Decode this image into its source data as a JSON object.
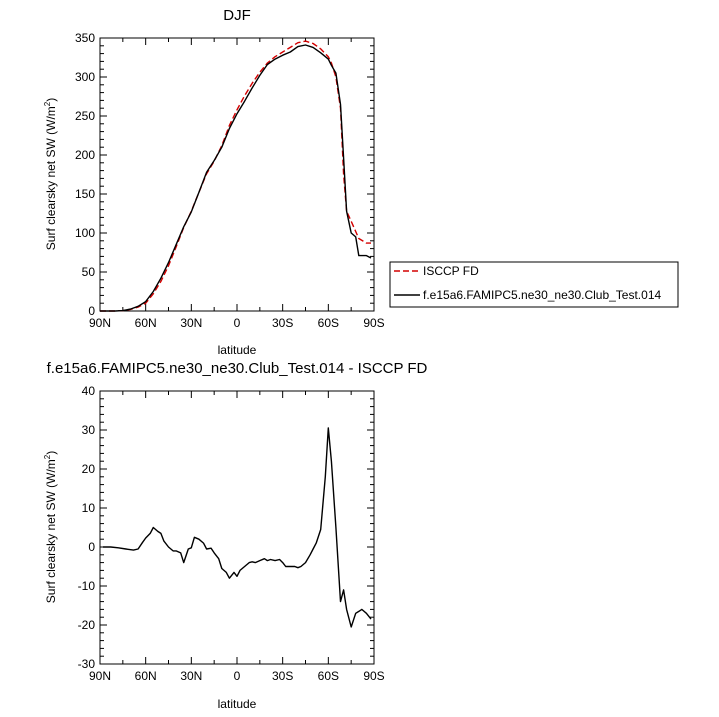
{
  "chart_data": [
    {
      "type": "line",
      "title": "DJF",
      "xlabel": "latitude",
      "ylabel": "Surf clearsky net SW (W/m",
      "ylabel_sup": "2",
      "ylabel_suffix": ")",
      "xlim": [
        90,
        -90
      ],
      "ylim": [
        0,
        350
      ],
      "xticks": [
        90,
        60,
        30,
        0,
        -30,
        -60,
        -90
      ],
      "xtick_labels": [
        "90N",
        "60N",
        "30N",
        "0",
        "30S",
        "60S",
        "90S"
      ],
      "yticks": [
        0,
        50,
        100,
        150,
        200,
        250,
        300,
        350
      ],
      "ytick_labels": [
        "0",
        "50",
        "100",
        "150",
        "200",
        "250",
        "300",
        "350"
      ],
      "legend_position": "right",
      "series": [
        {
          "name": "ISCCP FD",
          "color": "#d40000",
          "dash": true,
          "x": [
            90,
            85,
            80,
            75,
            70,
            65,
            60,
            55,
            50,
            45,
            40,
            35,
            30,
            25,
            20,
            15,
            10,
            5,
            0,
            -5,
            -10,
            -15,
            -20,
            -25,
            -30,
            -35,
            -40,
            -45,
            -50,
            -55,
            -60,
            -62,
            -65,
            -68,
            -70,
            -72,
            -75,
            -80,
            -85,
            -88
          ],
          "y": [
            0,
            0,
            0,
            0.5,
            2,
            5,
            10,
            22,
            38,
            58,
            82,
            107,
            128,
            152,
            176,
            192,
            212,
            238,
            258,
            276,
            292,
            306,
            318,
            326,
            332,
            338,
            344,
            346,
            343,
            336,
            326,
            318,
            300,
            260,
            175,
            128,
            115,
            93,
            87,
            87
          ]
        },
        {
          "name": "f.e15a6.FAMIPC5.ne30_ne30.Club_Test.014",
          "color": "#000000",
          "dash": false,
          "x": [
            90,
            85,
            80,
            75,
            70,
            65,
            60,
            55,
            50,
            45,
            40,
            35,
            30,
            25,
            20,
            15,
            10,
            5,
            0,
            -5,
            -10,
            -15,
            -20,
            -25,
            -30,
            -35,
            -40,
            -45,
            -50,
            -55,
            -60,
            -62,
            -65,
            -68,
            -70,
            -72,
            -75,
            -78,
            -80,
            -85,
            -88
          ],
          "y": [
            0,
            0,
            0,
            0.5,
            2.5,
            6,
            12,
            25,
            42,
            62,
            85,
            108,
            127,
            152,
            178,
            193,
            210,
            234,
            253,
            269,
            286,
            302,
            316,
            323,
            328,
            332,
            339,
            341,
            338,
            331,
            323,
            315,
            305,
            265,
            196,
            128,
            100,
            95,
            71,
            71,
            68
          ]
        }
      ]
    },
    {
      "type": "line",
      "title": "f.e15a6.FAMIPC5.ne30_ne30.Club_Test.014 - ISCCP FD",
      "xlabel": "latitude",
      "ylabel": "Surf clearsky net SW (W/m",
      "ylabel_sup": "2",
      "ylabel_suffix": ")",
      "xlim": [
        90,
        -90
      ],
      "ylim": [
        -30,
        40
      ],
      "xticks": [
        90,
        60,
        30,
        0,
        -30,
        -60,
        -90
      ],
      "xtick_labels": [
        "90N",
        "60N",
        "30N",
        "0",
        "30S",
        "60S",
        "90S"
      ],
      "yticks": [
        -30,
        -20,
        -10,
        0,
        10,
        20,
        30,
        40
      ],
      "ytick_labels": [
        "-30",
        "-20",
        "-10",
        "0",
        "10",
        "20",
        "30",
        "40"
      ],
      "series": [
        {
          "color": "#000000",
          "dash": false,
          "x": [
            88,
            83,
            78,
            73,
            68,
            65,
            62,
            60,
            57,
            55,
            52,
            50,
            48,
            45,
            42,
            40,
            37,
            35,
            32,
            30,
            28,
            25,
            22,
            20,
            17,
            15,
            12,
            10,
            7,
            5,
            2,
            0,
            -2,
            -5,
            -8,
            -10,
            -12,
            -15,
            -18,
            -20,
            -22,
            -25,
            -28,
            -30,
            -32,
            -35,
            -38,
            -40,
            -42,
            -45,
            -48,
            -50,
            -52,
            -55,
            -58,
            -60,
            -62,
            -65,
            -68,
            -70,
            -72,
            -75,
            -78,
            -80,
            -82,
            -85,
            -88
          ],
          "y": [
            0,
            0,
            -0.2,
            -0.5,
            -0.8,
            -0.5,
            1.2,
            2.3,
            3.5,
            5,
            4,
            3.5,
            1.5,
            0,
            -1,
            -1,
            -1.5,
            -4,
            -0.5,
            -0.2,
            2.5,
            2,
            1,
            -0.5,
            -0.3,
            -1.5,
            -3,
            -5.5,
            -6.5,
            -8,
            -6.5,
            -7.5,
            -6,
            -5,
            -4,
            -3.8,
            -4,
            -3.5,
            -3,
            -3.5,
            -3.2,
            -3.5,
            -3.2,
            -4,
            -5,
            -5,
            -5,
            -5.3,
            -5,
            -4,
            -2,
            -0.5,
            1,
            4.5,
            18,
            30.5,
            22,
            5,
            -14,
            -11,
            -16,
            -20.5,
            -17,
            -16.5,
            -16,
            -17,
            -18.5
          ]
        }
      ]
    }
  ]
}
